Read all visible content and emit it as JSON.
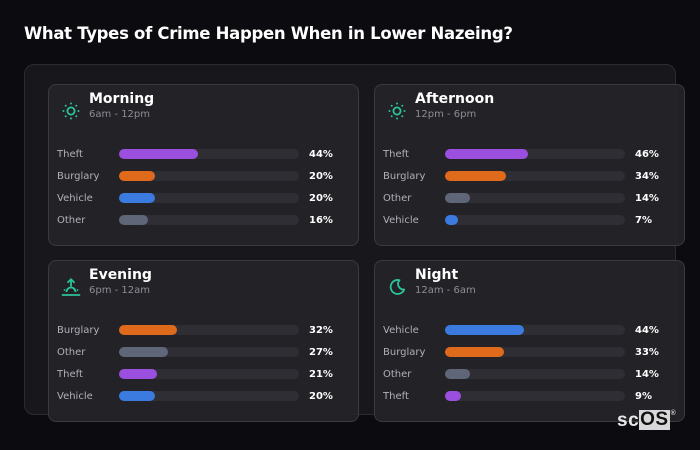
{
  "page": {
    "title": "What Types of Crime Happen When in Lower Nazeing?"
  },
  "colors": {
    "theft": "#9b4fde",
    "burglary": "#e06a1c",
    "vehicle": "#3b7be0",
    "other": "#5e6678",
    "icon_accent": "#2cc39a",
    "track": "#2e2e34"
  },
  "cards": [
    {
      "title": "Morning",
      "range": "6am - 12pm",
      "icon": "sun-icon",
      "rows": [
        {
          "label": "Theft",
          "pct": "44%",
          "value": 44,
          "category": "theft"
        },
        {
          "label": "Burglary",
          "pct": "20%",
          "value": 20,
          "category": "burglary"
        },
        {
          "label": "Vehicle",
          "pct": "20%",
          "value": 20,
          "category": "vehicle"
        },
        {
          "label": "Other",
          "pct": "16%",
          "value": 16,
          "category": "other"
        }
      ]
    },
    {
      "title": "Afternoon",
      "range": "12pm - 6pm",
      "icon": "sun-icon",
      "rows": [
        {
          "label": "Theft",
          "pct": "46%",
          "value": 46,
          "category": "theft"
        },
        {
          "label": "Burglary",
          "pct": "34%",
          "value": 34,
          "category": "burglary"
        },
        {
          "label": "Other",
          "pct": "14%",
          "value": 14,
          "category": "other"
        },
        {
          "label": "Vehicle",
          "pct": "7%",
          "value": 7,
          "category": "vehicle"
        }
      ]
    },
    {
      "title": "Evening",
      "range": "6pm - 12am",
      "icon": "sunset-icon",
      "rows": [
        {
          "label": "Burglary",
          "pct": "32%",
          "value": 32,
          "category": "burglary"
        },
        {
          "label": "Other",
          "pct": "27%",
          "value": 27,
          "category": "other"
        },
        {
          "label": "Theft",
          "pct": "21%",
          "value": 21,
          "category": "theft"
        },
        {
          "label": "Vehicle",
          "pct": "20%",
          "value": 20,
          "category": "vehicle"
        }
      ]
    },
    {
      "title": "Night",
      "range": "12am - 6am",
      "icon": "moon-icon",
      "rows": [
        {
          "label": "Vehicle",
          "pct": "44%",
          "value": 44,
          "category": "vehicle"
        },
        {
          "label": "Burglary",
          "pct": "33%",
          "value": 33,
          "category": "burglary"
        },
        {
          "label": "Other",
          "pct": "14%",
          "value": 14,
          "category": "other"
        },
        {
          "label": "Theft",
          "pct": "9%",
          "value": 9,
          "category": "theft"
        }
      ]
    }
  ],
  "logo": {
    "prefix": "sc",
    "boxed": "OS",
    "mark": "®"
  }
}
